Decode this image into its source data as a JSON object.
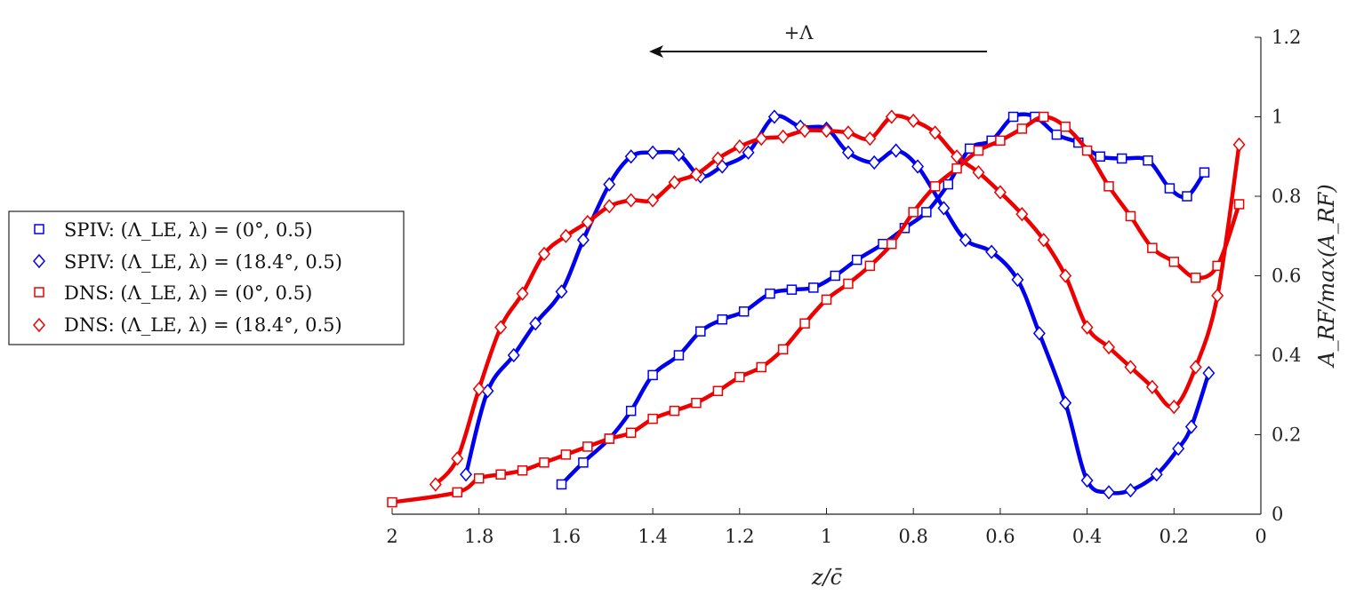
{
  "chart_data": {
    "type": "line",
    "xlabel": "z/c̄",
    "ylabel": "A_RF/max(A_RF)",
    "annotation": "+Λ",
    "xlim": [
      2,
      0
    ],
    "ylim": [
      0,
      1.2
    ],
    "x_reversed": true,
    "y_axis_position": "right",
    "legend_position": "left",
    "x_ticks": [
      "2",
      "1.8",
      "1.6",
      "1.4",
      "1.2",
      "1",
      "0.8",
      "0.6",
      "0.4",
      "0.2",
      "0"
    ],
    "y_ticks": [
      "0",
      "0.2",
      "0.4",
      "0.6",
      "0.8",
      "1",
      "1.2"
    ],
    "series": [
      {
        "name": "SPIV: (Λ_LE, λ) = (0°, 0.5)",
        "color": "#0000ee",
        "marker": "square",
        "x": [
          1.61,
          1.56,
          1.5,
          1.45,
          1.4,
          1.34,
          1.29,
          1.24,
          1.19,
          1.13,
          1.08,
          1.03,
          0.98,
          0.93,
          0.87,
          0.82,
          0.77,
          0.72,
          0.67,
          0.62,
          0.57,
          0.52,
          0.47,
          0.42,
          0.37,
          0.32,
          0.26,
          0.21,
          0.17,
          0.13
        ],
        "y": [
          0.075,
          0.13,
          0.19,
          0.26,
          0.35,
          0.4,
          0.46,
          0.49,
          0.51,
          0.555,
          0.565,
          0.57,
          0.6,
          0.64,
          0.68,
          0.72,
          0.76,
          0.83,
          0.92,
          0.94,
          1.0,
          1.0,
          0.955,
          0.935,
          0.9,
          0.895,
          0.89,
          0.82,
          0.8,
          0.86
        ]
      },
      {
        "name": "SPIV: (Λ_LE, λ) = (18.4°, 0.5)",
        "color": "#0000ee",
        "marker": "diamond",
        "x": [
          1.83,
          1.78,
          1.72,
          1.67,
          1.61,
          1.56,
          1.5,
          1.45,
          1.4,
          1.34,
          1.29,
          1.24,
          1.18,
          1.12,
          1.06,
          1.0,
          0.95,
          0.89,
          0.84,
          0.79,
          0.73,
          0.68,
          0.62,
          0.56,
          0.51,
          0.45,
          0.4,
          0.35,
          0.3,
          0.24,
          0.19,
          0.16,
          0.12
        ],
        "y": [
          0.1,
          0.31,
          0.4,
          0.48,
          0.56,
          0.69,
          0.83,
          0.9,
          0.91,
          0.905,
          0.85,
          0.875,
          0.91,
          1.0,
          0.975,
          0.97,
          0.91,
          0.885,
          0.915,
          0.875,
          0.77,
          0.69,
          0.66,
          0.59,
          0.455,
          0.28,
          0.085,
          0.055,
          0.06,
          0.1,
          0.165,
          0.22,
          0.355
        ]
      },
      {
        "name": "DNS: (Λ_LE, λ) = (0°, 0.5)",
        "color": "#ee0000",
        "marker": "square",
        "x": [
          2.0,
          1.85,
          1.8,
          1.75,
          1.7,
          1.65,
          1.6,
          1.55,
          1.5,
          1.45,
          1.4,
          1.35,
          1.3,
          1.25,
          1.2,
          1.15,
          1.1,
          1.05,
          1.0,
          0.95,
          0.9,
          0.85,
          0.8,
          0.75,
          0.7,
          0.65,
          0.6,
          0.55,
          0.5,
          0.45,
          0.4,
          0.35,
          0.3,
          0.25,
          0.2,
          0.15,
          0.1,
          0.05
        ],
        "y": [
          0.03,
          0.055,
          0.09,
          0.1,
          0.11,
          0.13,
          0.15,
          0.17,
          0.19,
          0.205,
          0.24,
          0.26,
          0.28,
          0.31,
          0.345,
          0.37,
          0.415,
          0.48,
          0.54,
          0.58,
          0.625,
          0.68,
          0.76,
          0.825,
          0.87,
          0.915,
          0.94,
          0.97,
          1.0,
          0.975,
          0.915,
          0.825,
          0.75,
          0.67,
          0.635,
          0.595,
          0.625,
          0.78
        ]
      },
      {
        "name": "DNS: (Λ_LE, λ) = (18.4°, 0.5)",
        "color": "#ee0000",
        "marker": "diamond",
        "x": [
          1.9,
          1.85,
          1.8,
          1.75,
          1.7,
          1.65,
          1.6,
          1.55,
          1.5,
          1.45,
          1.4,
          1.35,
          1.3,
          1.25,
          1.2,
          1.15,
          1.1,
          1.05,
          1.0,
          0.95,
          0.9,
          0.85,
          0.8,
          0.75,
          0.7,
          0.65,
          0.6,
          0.55,
          0.5,
          0.45,
          0.4,
          0.35,
          0.3,
          0.25,
          0.2,
          0.15,
          0.1,
          0.05
        ],
        "y": [
          0.075,
          0.14,
          0.315,
          0.47,
          0.555,
          0.655,
          0.7,
          0.735,
          0.775,
          0.79,
          0.79,
          0.835,
          0.855,
          0.895,
          0.925,
          0.945,
          0.95,
          0.965,
          0.965,
          0.96,
          0.945,
          1.0,
          0.99,
          0.96,
          0.9,
          0.86,
          0.81,
          0.755,
          0.69,
          0.6,
          0.47,
          0.42,
          0.37,
          0.32,
          0.27,
          0.37,
          0.55,
          0.93
        ]
      }
    ]
  }
}
